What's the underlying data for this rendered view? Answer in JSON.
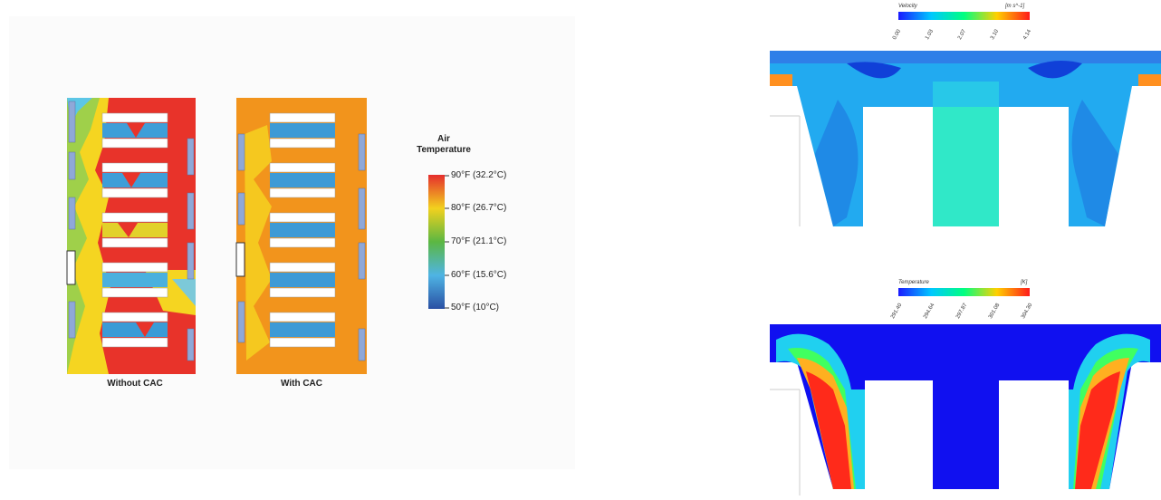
{
  "heatmaps": {
    "without_label": "Without CAC",
    "with_label": "With CAC"
  },
  "air_legend": {
    "title_line1": "Air",
    "title_line2": "Temperature",
    "ticks": [
      "90°F (32.2°C)",
      "80°F (26.7°C)",
      "70°F (21.1°C)",
      "60°F (15.6°C)",
      "50°F (10°C)"
    ],
    "colors": [
      "#e52d2d",
      "#f2d11e",
      "#5bb742",
      "#4fb4e4",
      "#2a4fa3"
    ]
  },
  "velocity_plot": {
    "label": "Velocity",
    "unit": "[m s^-1]",
    "ticks": [
      "0.00",
      "1.03",
      "2.07",
      "3.10",
      "4.14"
    ]
  },
  "temperature_plot": {
    "label": "Temperature",
    "unit": "[K]",
    "ticks": [
      "291.40",
      "294.64",
      "297.87",
      "301.08",
      "304.30"
    ]
  }
}
